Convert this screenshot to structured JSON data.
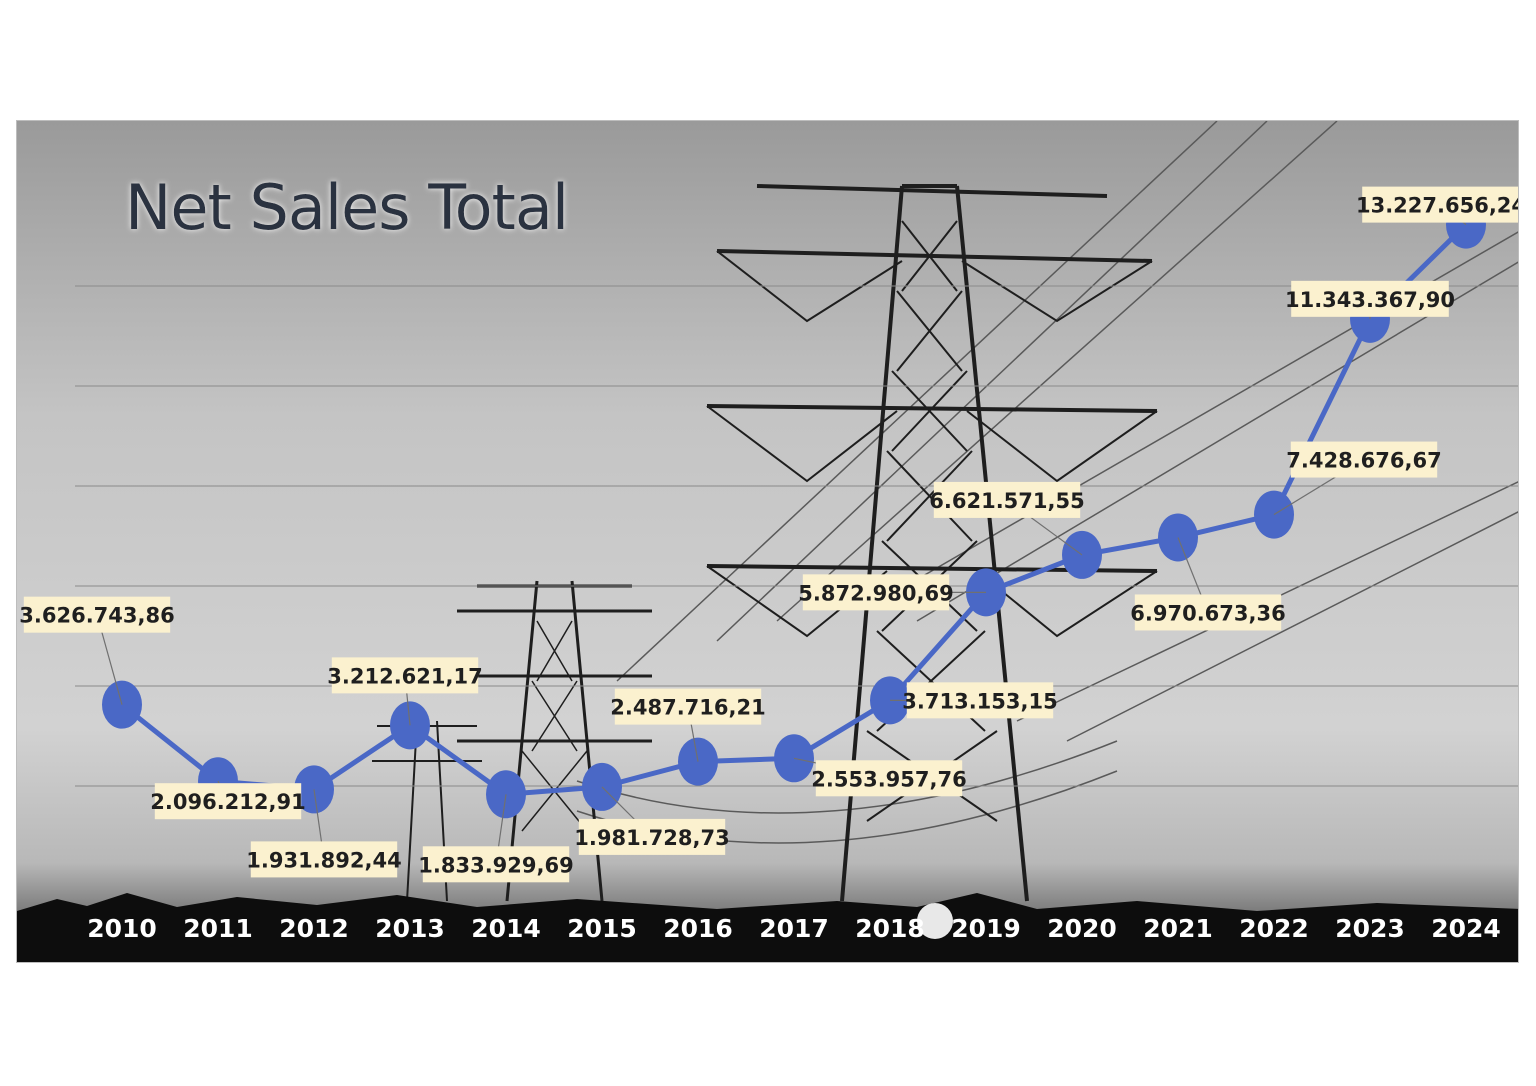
{
  "chart_data": {
    "type": "line",
    "title": "Net Sales Total",
    "categories": [
      "2010",
      "2011",
      "2012",
      "2013",
      "2014",
      "2015",
      "2016",
      "2017",
      "2018",
      "2019",
      "2020",
      "2021",
      "2022",
      "2023",
      "2024"
    ],
    "series": [
      {
        "values": [
          3626743.86,
          2096212.91,
          1931892.44,
          3212621.17,
          1833929.69,
          1981728.73,
          2487716.21,
          2553957.76,
          3713153.15,
          5872980.69,
          6621571.55,
          6970673.36,
          7428676.67,
          11343367.9,
          13227656.24
        ],
        "labels": [
          "3.626.743,86",
          "2.096.212,91",
          "1.931.892,44",
          "3.212.621,17",
          "1.833.929,69",
          "1.981.728,73",
          "2.487.716,21",
          "2.553.957,76",
          "3.713.153,15",
          "5.872.980,69",
          "6.621.571,55",
          "6.970.673,36",
          "7.428.676,67",
          "11.343.367,90",
          "13.227.656,24"
        ]
      }
    ],
    "ylim": [
      0,
      14000000
    ],
    "grid": true,
    "legend": "none",
    "colors": {
      "series": "#4a68c6",
      "label_bg": "#fbf1cf",
      "title": "#2b3140",
      "ticks": "#ffffff"
    },
    "background_image": "electricity-pylons-grayscale"
  }
}
